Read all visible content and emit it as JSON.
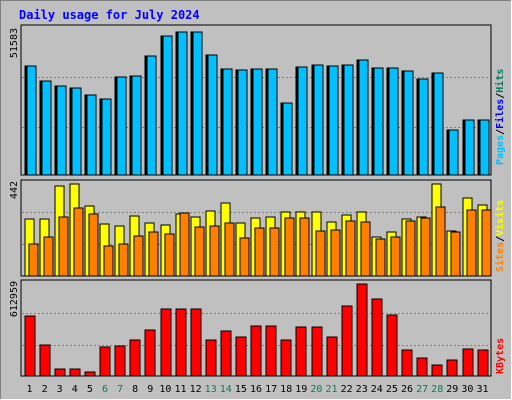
{
  "chart_data": [
    {
      "type": "bar",
      "title": "Daily usage for July 2024",
      "categories": [
        "1",
        "2",
        "3",
        "4",
        "5",
        "6",
        "7",
        "8",
        "9",
        "10",
        "11",
        "12",
        "13",
        "14",
        "15",
        "16",
        "17",
        "18",
        "19",
        "20",
        "21",
        "22",
        "23",
        "24",
        "25",
        "26",
        "27",
        "28",
        "29",
        "30",
        "31"
      ],
      "weekend_days": [
        "6",
        "7",
        "13",
        "14",
        "20",
        "21",
        "27",
        "28"
      ],
      "ylabel_max": "51583",
      "series": [
        {
          "name": "Hits",
          "color": "#00805c",
          "values": [
            39500,
            34200,
            32500,
            31800,
            29100,
            27600,
            35700,
            36100,
            43200,
            50600,
            52000,
            52000,
            43600,
            38500,
            38300,
            38700,
            38700,
            26000,
            39100,
            40100,
            39800,
            40000,
            41800,
            38900,
            38900,
            37800,
            34800,
            37000,
            16500,
            20000,
            20000
          ]
        },
        {
          "name": "Files",
          "color": "#0000ff",
          "values": [
            39500,
            34200,
            32500,
            31800,
            29100,
            27600,
            35700,
            36100,
            43200,
            50600,
            52000,
            52000,
            43600,
            38500,
            38300,
            38700,
            38700,
            26000,
            39100,
            40100,
            39800,
            40000,
            41800,
            38900,
            38900,
            37800,
            34800,
            37000,
            16500,
            20000,
            20000
          ]
        },
        {
          "name": "Pages",
          "color": "#00c0ff",
          "values": [
            39500,
            34200,
            32500,
            31800,
            29100,
            27600,
            35700,
            36100,
            43200,
            50600,
            52000,
            52000,
            43600,
            38500,
            38300,
            38700,
            38700,
            26000,
            39100,
            40100,
            39800,
            40000,
            41800,
            38900,
            38900,
            37800,
            34800,
            37000,
            16500,
            20000,
            20000
          ]
        }
      ]
    },
    {
      "type": "bar",
      "ylabel_max": "442",
      "series": [
        {
          "name": "Visits",
          "color": "#ffff00",
          "values": [
            258,
            258,
            404,
            415,
            315,
            233,
            227,
            270,
            237,
            230,
            280,
            267,
            294,
            328,
            237,
            263,
            268,
            288,
            288,
            288,
            244,
            273,
            288,
            175,
            200,
            255,
            266,
            415,
            201,
            353,
            319
          ]
        },
        {
          "name": "Sites",
          "color": "#ff8000",
          "values": [
            145,
            175,
            267,
            305,
            278,
            137,
            143,
            180,
            197,
            190,
            285,
            220,
            226,
            237,
            172,
            216,
            216,
            263,
            261,
            203,
            207,
            248,
            243,
            167,
            176,
            248,
            260,
            313,
            198,
            296,
            296
          ]
        }
      ]
    },
    {
      "type": "bar",
      "ylabel_max": "612959",
      "series": [
        {
          "name": "KBytes",
          "color": "#ff0000",
          "values": [
            410000,
            210000,
            50000,
            45000,
            30000,
            200000,
            205000,
            245000,
            315000,
            460000,
            460000,
            460000,
            245000,
            310000,
            270000,
            340000,
            340000,
            245000,
            335000,
            335000,
            265000,
            480000,
            630000,
            525000,
            415000,
            180000,
            120000,
            75000,
            110000,
            185000,
            175000
          ]
        }
      ]
    }
  ]
}
